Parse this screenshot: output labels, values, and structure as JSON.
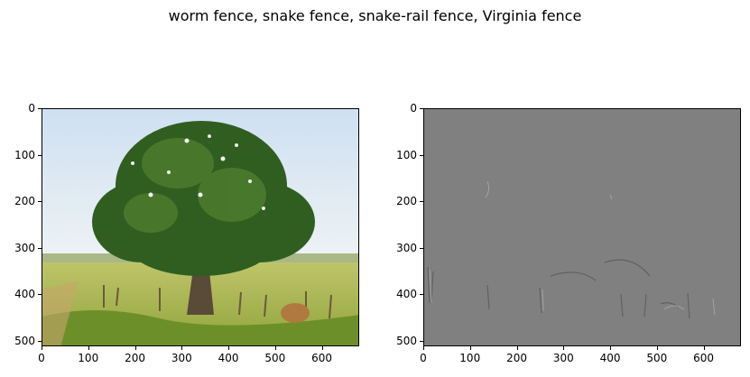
{
  "title": "worm fence, snake fence, snake-rail fence, Virginia fence",
  "chart_data": [
    {
      "type": "image",
      "description": "photo",
      "x_range": [
        0,
        680
      ],
      "y_range": [
        0,
        512
      ],
      "y_inverted": true,
      "xticks": [
        0,
        100,
        200,
        300,
        400,
        500,
        600
      ],
      "yticks": [
        0,
        100,
        200,
        300,
        400,
        500
      ]
    },
    {
      "type": "image",
      "description": "saliency map",
      "x_range": [
        0,
        680
      ],
      "y_range": [
        0,
        512
      ],
      "y_inverted": true,
      "xticks": [
        0,
        100,
        200,
        300,
        400,
        500,
        600
      ],
      "yticks": [
        0,
        100,
        200,
        300,
        400,
        500
      ]
    }
  ],
  "colors": {
    "sky": "#dce8f3",
    "grass": "#b4ba4e",
    "foliage": "#2f5e20",
    "gray_map": "#808080"
  }
}
